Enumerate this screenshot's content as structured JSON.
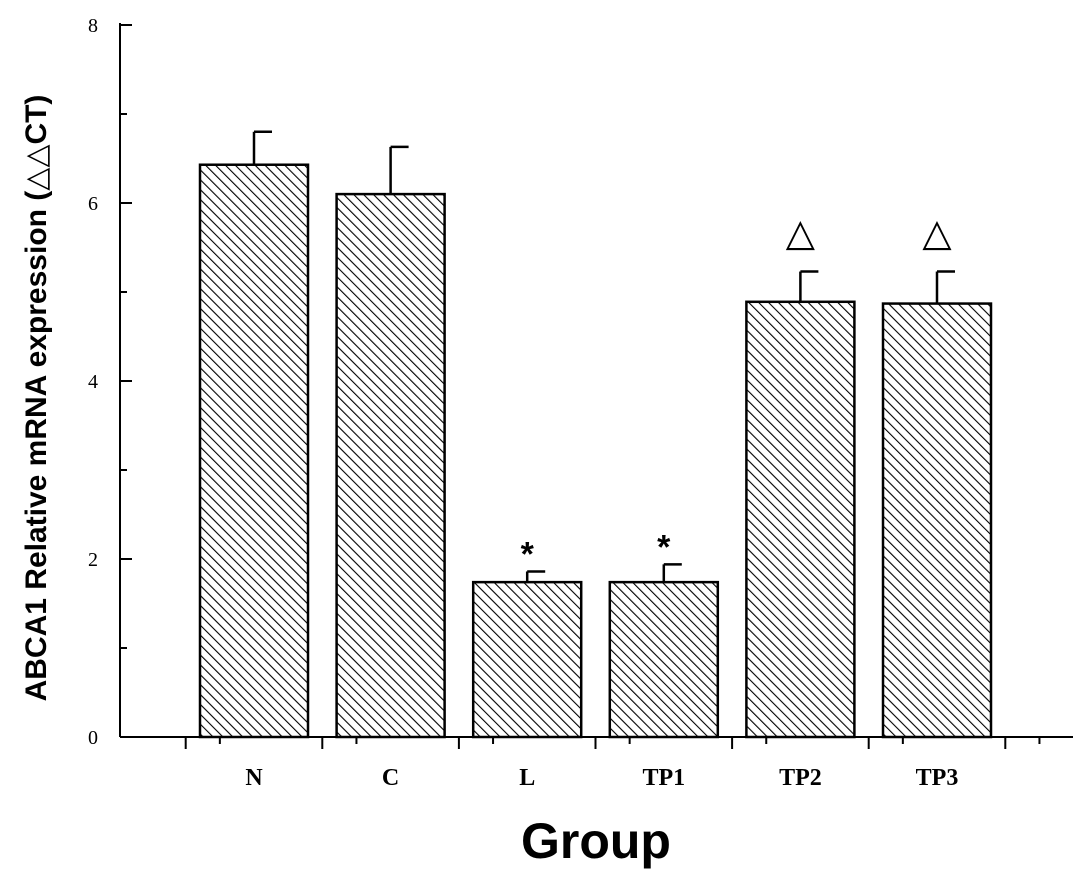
{
  "chart_data": {
    "type": "bar",
    "categories": [
      "N",
      "C",
      "L",
      "TP1",
      "TP2",
      "TP3"
    ],
    "values": [
      6.43,
      6.1,
      1.74,
      1.74,
      4.89,
      4.87
    ],
    "errors": [
      0.37,
      0.53,
      0.12,
      0.2,
      0.34,
      0.36
    ],
    "annotations": [
      "",
      "",
      "*",
      "*",
      "△",
      "△"
    ],
    "xlabel": "Group",
    "ylabel": "ABCA1 Relative mRNA expression (△△CT)",
    "ylim": [
      0,
      8
    ],
    "yticks": [
      "0",
      "2",
      "4",
      "6",
      "8"
    ],
    "grid": false,
    "bar_fill": "hatched",
    "colors": {
      "bar_hatch": "#000000",
      "bar_background": "#ffffff",
      "axis": "#000000"
    }
  }
}
